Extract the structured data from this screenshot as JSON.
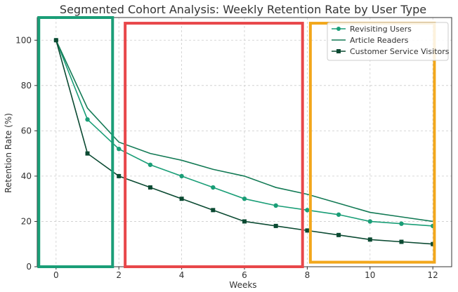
{
  "chart_data": {
    "type": "line",
    "title": "Segmented Cohort Analysis: Weekly Retention Rate by User Type",
    "xlabel": "Weeks",
    "ylabel": "Retention Rate (%)",
    "xlim": [
      -0.6,
      12.6
    ],
    "ylim": [
      0,
      110
    ],
    "xticks": [
      0,
      2,
      4,
      6,
      8,
      10,
      12
    ],
    "yticks": [
      0,
      20,
      40,
      60,
      80,
      100
    ],
    "grid": true,
    "legend_position": "top-right",
    "x": [
      0,
      1,
      2,
      3,
      4,
      5,
      6,
      7,
      8,
      9,
      10,
      11,
      12
    ],
    "series": [
      {
        "name": "Revisiting Users",
        "color": "#1a9e77",
        "marker": "circle",
        "values": [
          100,
          65,
          52,
          45,
          40,
          35,
          30,
          27,
          25,
          23,
          20,
          19,
          18
        ]
      },
      {
        "name": "Article Readers",
        "color": "#137a55",
        "marker": "none",
        "values": [
          100,
          70,
          55,
          50,
          47,
          43,
          40,
          35,
          32,
          28,
          24,
          22,
          20
        ]
      },
      {
        "name": "Customer Service Visitors",
        "color": "#0b4a32",
        "marker": "square",
        "values": [
          100,
          50,
          40,
          35,
          30,
          25,
          20,
          18,
          16,
          14,
          12,
          11,
          10
        ]
      }
    ],
    "highlight_regions": [
      {
        "name": "green-box",
        "color": "#1a9e77",
        "x_range": [
          -0.55,
          1.8
        ],
        "y_range": [
          0,
          110
        ]
      },
      {
        "name": "red-box",
        "color": "#e8474a",
        "x_range": [
          2.2,
          7.85
        ],
        "y_range": [
          0,
          107.5
        ]
      },
      {
        "name": "orange-box",
        "color": "#f2a71b",
        "x_range": [
          8.1,
          12.05
        ],
        "y_range": [
          2,
          107.5
        ]
      }
    ]
  }
}
